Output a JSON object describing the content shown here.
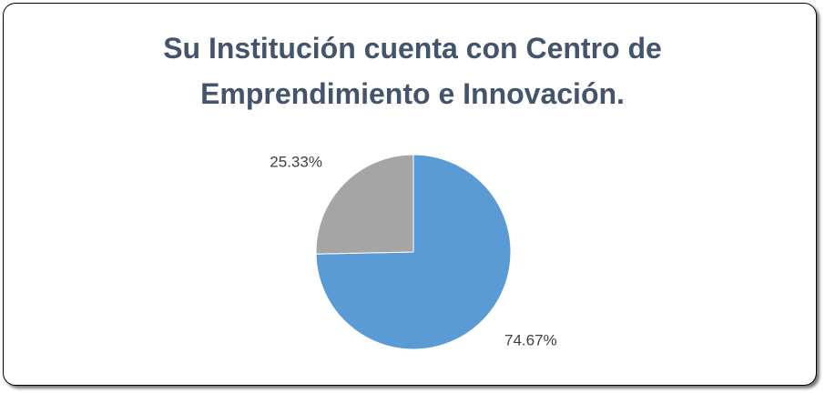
{
  "chart_data": {
    "type": "pie",
    "title": "Su Institución cuenta con Centro de Emprendimiento e Innovación.",
    "values": [
      74.67,
      25.33
    ],
    "value_labels": [
      "74.67%",
      "25.33%"
    ],
    "colors": [
      "#5b9bd5",
      "#a5a5a5"
    ]
  }
}
